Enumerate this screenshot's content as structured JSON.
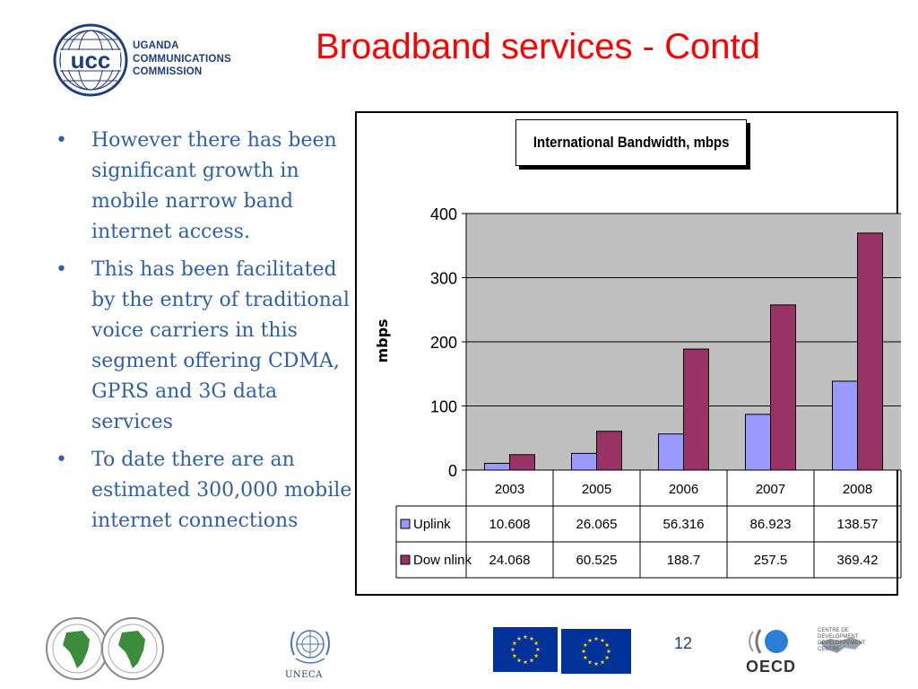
{
  "header": {
    "logo_abbr": "ucc",
    "logo_lines": [
      "UGANDA",
      "COMMUNICATIONS",
      "COMMISSION"
    ],
    "title": "Broadband services - Contd"
  },
  "bullets": [
    "However there has been significant growth in mobile narrow band internet access.",
    "This has been facilitated by the entry of traditional voice carriers in this segment offering CDMA, GPRS and 3G data services",
    "To date there are an estimated 300,000 mobile internet connections"
  ],
  "chart_data": {
    "type": "bar",
    "title": "International Bandwidth, mbps",
    "ylabel": "mbps",
    "xlabel": "",
    "categories": [
      "2003",
      "2005",
      "2006",
      "2007",
      "2008"
    ],
    "series": [
      {
        "name": "Uplink",
        "values": [
          10.608,
          26.065,
          56.316,
          86.923,
          138.57
        ],
        "value_labels": [
          "10.608",
          "26.065",
          "56.316",
          "86.923",
          "138.57"
        ],
        "color": "#9999ff"
      },
      {
        "name": "Dow nlink",
        "values": [
          24.068,
          60.525,
          188.7,
          257.5,
          369.42
        ],
        "value_labels": [
          "24.068",
          "60.525",
          "188.7",
          "257.5",
          "369.42"
        ],
        "color": "#993366"
      }
    ],
    "ylim": [
      0,
      400
    ],
    "yticks": [
      0,
      100,
      200,
      300,
      400
    ],
    "grid": true,
    "plot_background": "#c0c0c0",
    "legend": "data-table"
  },
  "footer": {
    "page_number": "12",
    "uneca_label": "UNECA",
    "oecd_label": "OECD",
    "oecd_centre_lines": [
      "CENTRE DE DEVELOPMENT",
      "DEVELOPPEMENT CENTRE"
    ]
  },
  "colors": {
    "title": "#ff0000",
    "bullet_text": "#2f5fa8",
    "logo_blue": "#1f3d7a",
    "eu_blue": "#003399",
    "eu_star": "#ffcc00"
  },
  "icons": [
    "ucc-globe-icon",
    "afdb-map-icon",
    "un-emblem-icon",
    "eu-flag-icon",
    "oecd-logo-icon",
    "world-map-icon"
  ]
}
